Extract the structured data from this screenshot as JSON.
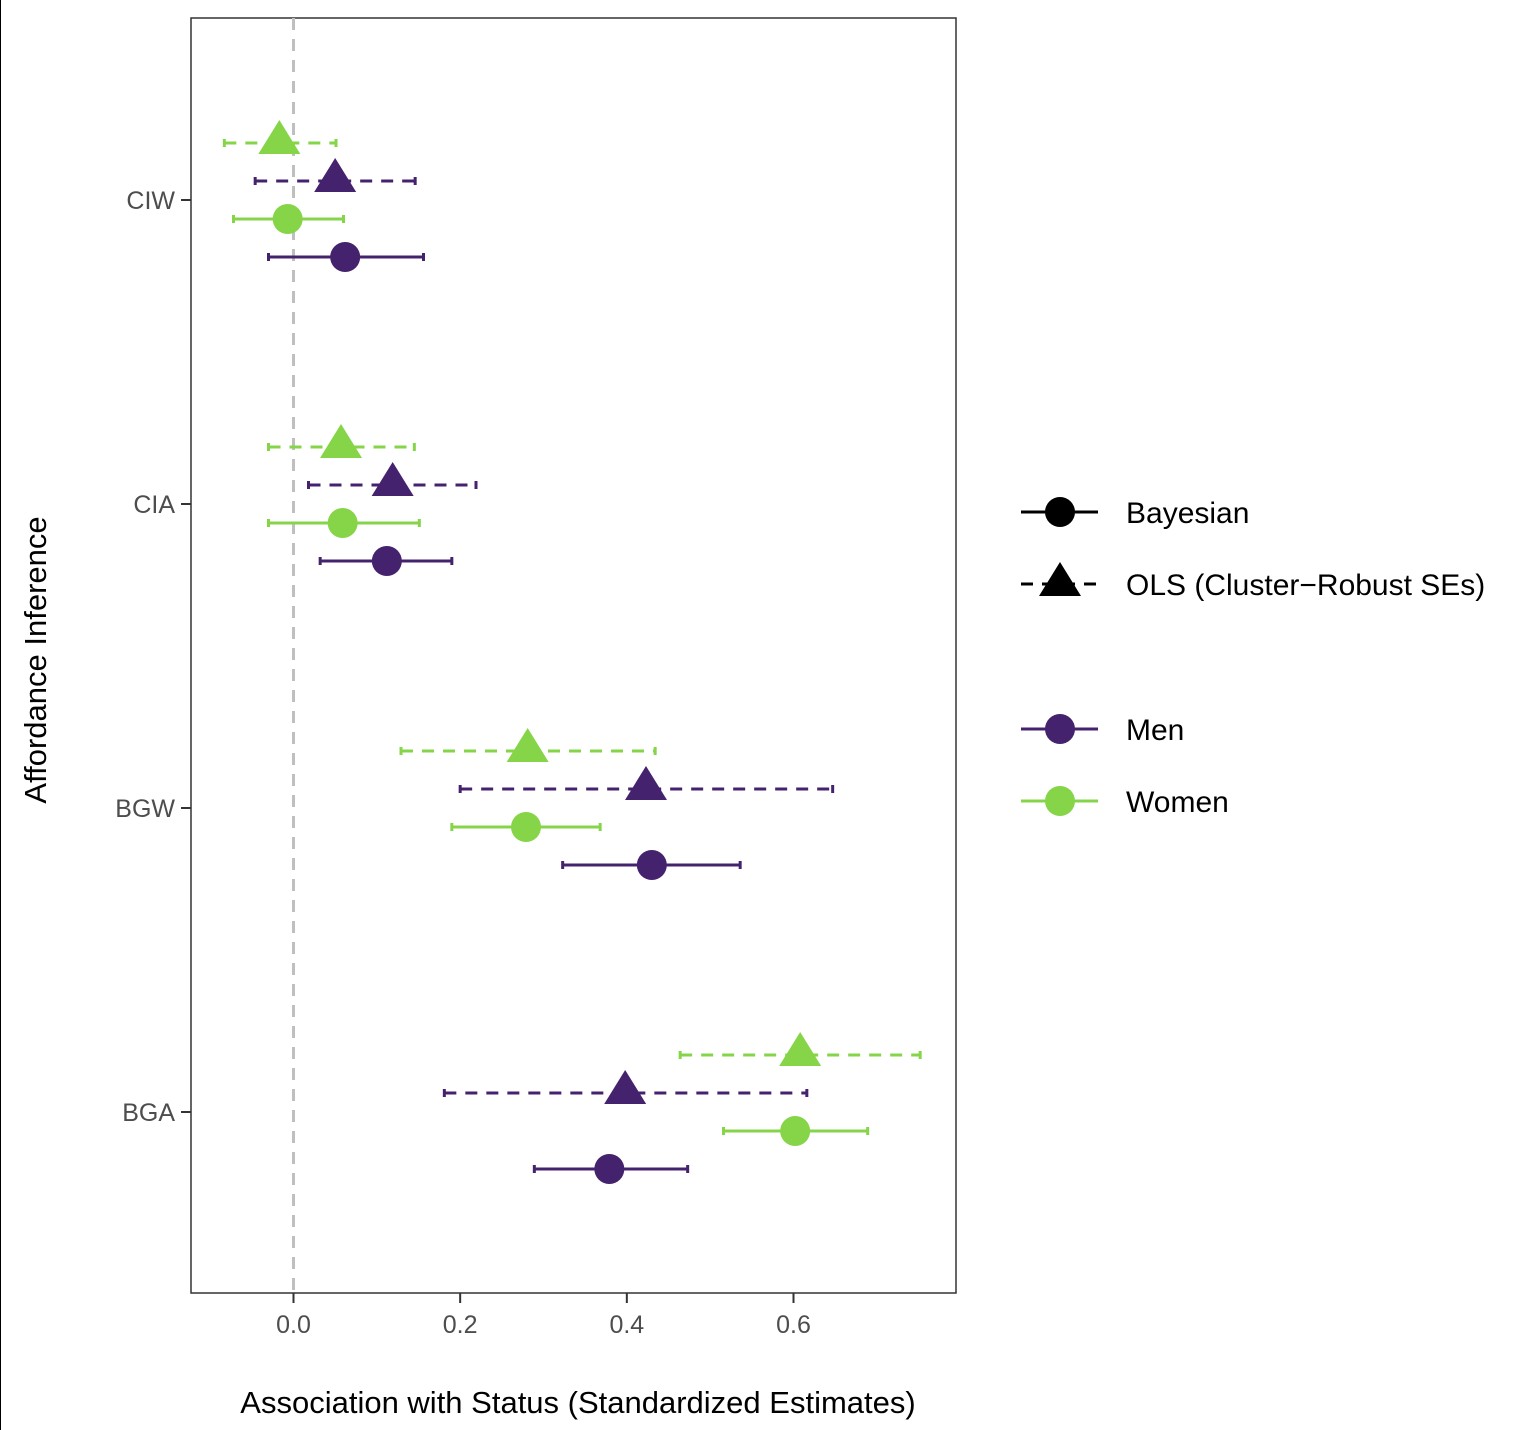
{
  "chart_data": {
    "type": "scatter",
    "title": "",
    "xlabel": "Association with Status (Standardized Estimates)",
    "ylabel": "Affordance Inference",
    "xlim": [
      -0.123,
      0.795
    ],
    "x_ticks": [
      "0.0",
      "0.2",
      "0.4",
      "0.6"
    ],
    "x_tick_values": [
      0.0,
      0.2,
      0.4,
      0.6
    ],
    "categories": [
      "CIW",
      "CIA",
      "BGW",
      "BGA"
    ],
    "reference_line_x": 0.0,
    "grid": false,
    "legend_position": "right",
    "colors": {
      "Men": "#45226e",
      "Women": "#86d549"
    },
    "legend": {
      "methods": [
        {
          "label": "Bayesian",
          "shape": "circle",
          "line": "solid"
        },
        {
          "label": "OLS (Cluster−Robust SEs)",
          "shape": "triangle",
          "line": "dashed"
        }
      ],
      "groups": [
        {
          "label": "Men",
          "color": "#45226e"
        },
        {
          "label": "Women",
          "color": "#86d549"
        }
      ]
    },
    "series": [
      {
        "method": "OLS",
        "group": "Women",
        "shape": "triangle",
        "line": "dashed",
        "points": [
          {
            "category": "CIW",
            "estimate": -0.017,
            "lower": -0.083,
            "upper": 0.051
          },
          {
            "category": "CIA",
            "estimate": 0.057,
            "lower": -0.03,
            "upper": 0.145
          },
          {
            "category": "BGW",
            "estimate": 0.281,
            "lower": 0.129,
            "upper": 0.434
          },
          {
            "category": "BGA",
            "estimate": 0.608,
            "lower": 0.464,
            "upper": 0.752
          }
        ]
      },
      {
        "method": "OLS",
        "group": "Men",
        "shape": "triangle",
        "line": "dashed",
        "points": [
          {
            "category": "CIW",
            "estimate": 0.05,
            "lower": -0.046,
            "upper": 0.146
          },
          {
            "category": "CIA",
            "estimate": 0.119,
            "lower": 0.018,
            "upper": 0.219
          },
          {
            "category": "BGW",
            "estimate": 0.423,
            "lower": 0.2,
            "upper": 0.647
          },
          {
            "category": "BGA",
            "estimate": 0.398,
            "lower": 0.181,
            "upper": 0.616
          }
        ]
      },
      {
        "method": "Bayesian",
        "group": "Women",
        "shape": "circle",
        "line": "solid",
        "points": [
          {
            "category": "CIW",
            "estimate": -0.007,
            "lower": -0.072,
            "upper": 0.06
          },
          {
            "category": "CIA",
            "estimate": 0.059,
            "lower": -0.03,
            "upper": 0.151
          },
          {
            "category": "BGW",
            "estimate": 0.279,
            "lower": 0.19,
            "upper": 0.368
          },
          {
            "category": "BGA",
            "estimate": 0.602,
            "lower": 0.516,
            "upper": 0.689
          }
        ]
      },
      {
        "method": "Bayesian",
        "group": "Men",
        "shape": "circle",
        "line": "solid",
        "points": [
          {
            "category": "CIW",
            "estimate": 0.062,
            "lower": -0.03,
            "upper": 0.156
          },
          {
            "category": "CIA",
            "estimate": 0.112,
            "lower": 0.032,
            "upper": 0.19
          },
          {
            "category": "BGW",
            "estimate": 0.43,
            "lower": 0.323,
            "upper": 0.536
          },
          {
            "category": "BGA",
            "estimate": 0.379,
            "lower": 0.289,
            "upper": 0.473
          }
        ]
      }
    ]
  }
}
